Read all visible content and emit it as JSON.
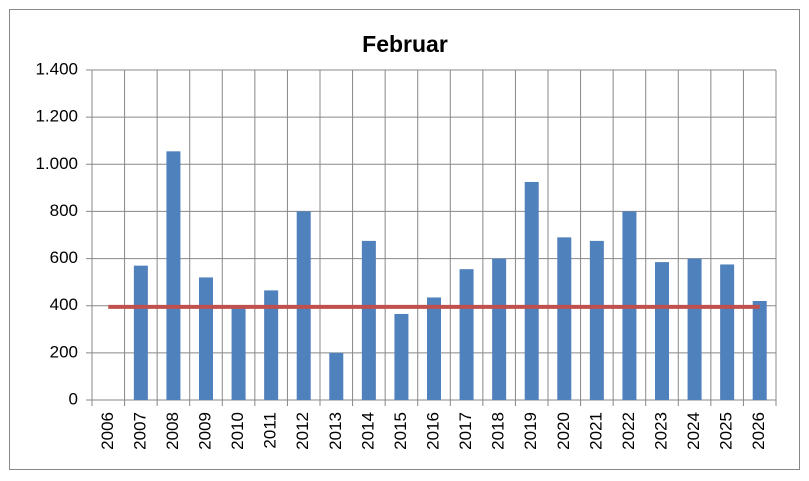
{
  "chart_data": {
    "type": "bar",
    "title": "Februar",
    "categories": [
      "2006",
      "2007",
      "2008",
      "2009",
      "2010",
      "2011",
      "2012",
      "2013",
      "2014",
      "2015",
      "2016",
      "2017",
      "2018",
      "2019",
      "2020",
      "2021",
      "2022",
      "2023",
      "2024",
      "2025",
      "2026"
    ],
    "series": [
      {
        "type": "bar",
        "color": "#4f81bd",
        "values": [
          null,
          570,
          1055,
          520,
          390,
          465,
          800,
          200,
          675,
          365,
          435,
          555,
          600,
          925,
          690,
          675,
          800,
          585,
          600,
          575,
          420
        ]
      },
      {
        "type": "line",
        "color": "#c0504d",
        "values": [
          395,
          395,
          395,
          395,
          395,
          395,
          395,
          395,
          395,
          395,
          395,
          395,
          395,
          395,
          395,
          395,
          395,
          395,
          395,
          395,
          395
        ]
      }
    ],
    "ylim": [
      0,
      1400
    ],
    "yticks": [
      0,
      200,
      400,
      600,
      800,
      {
        "value": 1000,
        "label": "1.000"
      },
      {
        "value": 1200,
        "label": "1.200"
      },
      {
        "value": 1400,
        "label": "1.400"
      }
    ],
    "grid": true
  }
}
